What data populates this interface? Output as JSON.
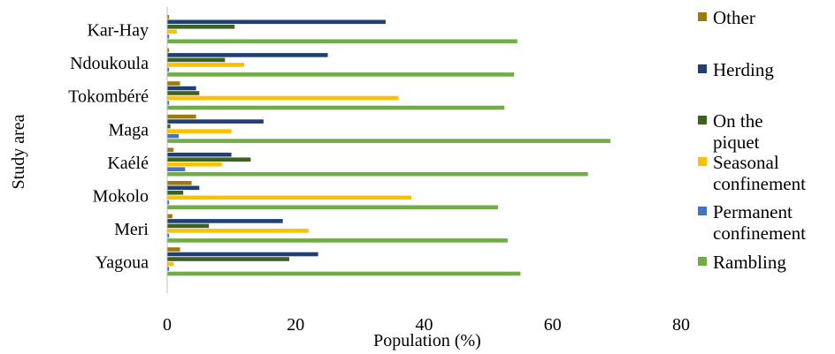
{
  "chart_data": {
    "type": "bar",
    "orientation": "horizontal",
    "xlabel": "Population (%)",
    "ylabel": "Study area",
    "xlim": [
      0,
      80
    ],
    "xticks": [
      0,
      20,
      40,
      60,
      80
    ],
    "grid": false,
    "legend_position": "right",
    "categories": [
      "Kar-Hay",
      "Ndoukoula",
      "Tokombéré",
      "Maga",
      "Kaélé",
      "Mokolo",
      "Meri",
      "Yagoua"
    ],
    "series": [
      {
        "name": "Other",
        "color": "#9C7A0F",
        "values": [
          0.3,
          0.3,
          2.0,
          4.5,
          1.0,
          3.8,
          0.8,
          2.0
        ]
      },
      {
        "name": "Herding",
        "color": "#203F75",
        "values": [
          34,
          25,
          4.5,
          15,
          10,
          5.0,
          18,
          23.5
        ]
      },
      {
        "name": "On the piquet",
        "color": "#3B6220",
        "values": [
          10.5,
          9.0,
          5.0,
          0.5,
          13,
          2.5,
          6.5,
          19
        ]
      },
      {
        "name": "Seasonal confinement",
        "color": "#FFC000",
        "values": [
          1.5,
          12,
          36,
          10,
          8.5,
          38,
          22,
          1.0
        ]
      },
      {
        "name": "Permanent confinement",
        "color": "#4472C4",
        "values": [
          0.3,
          0.3,
          0.3,
          1.8,
          2.8,
          0.3,
          0.3,
          0.3
        ]
      },
      {
        "name": "Rambling",
        "color": "#70AD47",
        "values": [
          54.5,
          54,
          52.5,
          69,
          65.5,
          51.5,
          53,
          55
        ]
      }
    ],
    "legend_labels": [
      [
        "Other"
      ],
      [
        "Herding"
      ],
      [
        "On the",
        "piquet"
      ],
      [
        "Seasonal",
        "confinement"
      ],
      [
        "Permanent",
        "confinement"
      ],
      [
        "Rambling"
      ]
    ]
  }
}
